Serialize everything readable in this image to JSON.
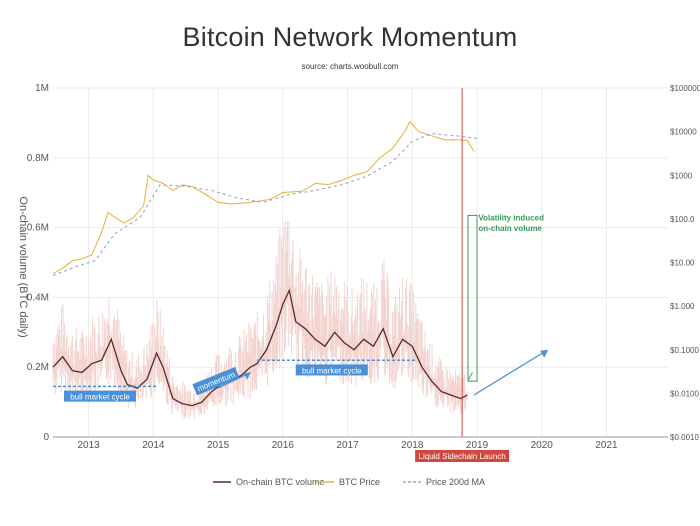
{
  "title": "Bitcoin Network Momentum",
  "subtitle": "source: charts.woobull.com",
  "chart_data": {
    "type": "line",
    "title": "Bitcoin Network Momentum",
    "subtitle": "source: charts.woobull.com",
    "ylabel": "On-chain volume (BTC daily)",
    "x_ticks": [
      "2013",
      "2014",
      "2015",
      "2016",
      "2017",
      "2018",
      "2019",
      "2020",
      "2021"
    ],
    "x_range": [
      2012.45,
      2021.95
    ],
    "y_left_ticks": [
      "0",
      "0.2M",
      "0.4M",
      "0.6M",
      "0.8M",
      "1M"
    ],
    "y_left_range": [
      0,
      1000000
    ],
    "y_right_ticks": [
      "$0.0010",
      "$0.0100",
      "$0.1000",
      "$1.000",
      "$10.00",
      "$100.0",
      "$1000",
      "$10000",
      "$100000"
    ],
    "y_right_range": [
      0.001,
      100000
    ],
    "y_right_scale": "log",
    "grid": true,
    "legend_position": "bottom",
    "series": [
      {
        "name": "On-chain BTC volume",
        "color": "#5b2a2a",
        "x": [
          2012.45,
          2012.6,
          2012.75,
          2012.9,
          2013.05,
          2013.2,
          2013.35,
          2013.5,
          2013.6,
          2013.75,
          2013.9,
          2014.05,
          2014.15,
          2014.3,
          2014.45,
          2014.6,
          2014.75,
          2014.9,
          2015.05,
          2015.2,
          2015.35,
          2015.5,
          2015.6,
          2015.75,
          2015.9,
          2016.0,
          2016.1,
          2016.2,
          2016.35,
          2016.5,
          2016.65,
          2016.8,
          2016.95,
          2017.1,
          2017.25,
          2017.4,
          2017.55,
          2017.7,
          2017.85,
          2018.0,
          2018.15,
          2018.3,
          2018.45,
          2018.6,
          2018.75,
          2018.85
        ],
        "values": [
          200000,
          230000,
          190000,
          185000,
          210000,
          220000,
          280000,
          190000,
          150000,
          140000,
          165000,
          240000,
          200000,
          110000,
          95000,
          90000,
          100000,
          130000,
          150000,
          165000,
          175000,
          200000,
          210000,
          250000,
          320000,
          380000,
          420000,
          330000,
          310000,
          280000,
          260000,
          300000,
          270000,
          250000,
          280000,
          260000,
          310000,
          230000,
          280000,
          260000,
          200000,
          160000,
          130000,
          120000,
          110000,
          120000
        ]
      },
      {
        "name": "BTC Price",
        "color": "#e8b54e",
        "x": [
          2012.45,
          2012.6,
          2012.75,
          2012.9,
          2013.05,
          2013.2,
          2013.3,
          2013.4,
          2013.55,
          2013.7,
          2013.85,
          2013.92,
          2014.0,
          2014.15,
          2014.3,
          2014.45,
          2014.6,
          2014.8,
          2015.0,
          2015.2,
          2015.4,
          2015.6,
          2015.8,
          2016.0,
          2016.3,
          2016.5,
          2016.7,
          2016.9,
          2017.1,
          2017.3,
          2017.5,
          2017.7,
          2017.9,
          2017.96,
          2018.1,
          2018.3,
          2018.5,
          2018.7,
          2018.85,
          2018.95
        ],
        "values": [
          5.5,
          7.5,
          11,
          12,
          15,
          50,
          140,
          110,
          80,
          110,
          200,
          1000,
          770,
          650,
          450,
          600,
          550,
          370,
          240,
          220,
          230,
          250,
          280,
          400,
          430,
          650,
          610,
          750,
          1000,
          1200,
          2500,
          4200,
          11000,
          17000,
          10000,
          8000,
          6500,
          6500,
          6300,
          3500
        ]
      },
      {
        "name": "Price 200d MA",
        "color": "#9aa8c4",
        "style": "dashed",
        "x": [
          2012.45,
          2012.8,
          2013.1,
          2013.4,
          2013.8,
          2014.1,
          2014.5,
          2014.9,
          2015.3,
          2015.7,
          2016.1,
          2016.5,
          2016.9,
          2017.3,
          2017.7,
          2018.0,
          2018.3,
          2018.7,
          2019.0
        ],
        "values": [
          5,
          8,
          11,
          45,
          110,
          600,
          560,
          450,
          300,
          240,
          360,
          450,
          600,
          950,
          2100,
          6000,
          9000,
          8000,
          7000
        ]
      }
    ],
    "annotations": [
      {
        "type": "text",
        "text": "bull market cycle"
      },
      {
        "type": "text",
        "text": "momentum"
      },
      {
        "type": "text",
        "text": "bull market cycle"
      },
      {
        "type": "text",
        "text": "Volatility induced on-chain volume"
      },
      {
        "type": "vline",
        "label": "Liquid Sidechain Launch"
      }
    ]
  },
  "annotations": {
    "bull1": "bull market cycle",
    "momentum": "momentum",
    "bull2": "bull market cycle",
    "volatility_line1": "Volatility induced",
    "volatility_line2": "on-chain volume",
    "liquid": "Liquid Sidechain Launch"
  },
  "legend": [
    {
      "label": "On-chain BTC volume",
      "color": "#5b2a2a",
      "dash": false
    },
    {
      "label": "BTC Price",
      "color": "#e8b54e",
      "dash": false
    },
    {
      "label": "Price 200d MA",
      "color": "#9aa8c4",
      "dash": true
    }
  ],
  "colors": {
    "volume": "#5b2a2a",
    "volume_noise": "#f3d4cf",
    "price": "#e8b54e",
    "ma": "#9aa8c4",
    "annotation_blue": "#4a90d9",
    "annotation_green": "#3a9a5b",
    "marker_red": "#d0473e"
  }
}
